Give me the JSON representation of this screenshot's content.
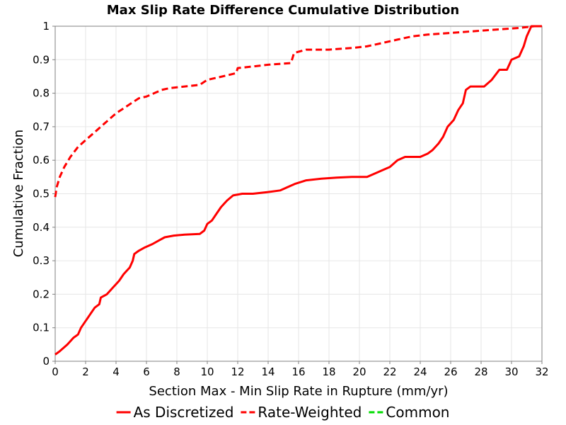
{
  "chart_data": {
    "type": "line",
    "title": "Max Slip Rate Difference Cumulative Distribution",
    "xlabel": "Section Max - Min Slip Rate in Rupture (mm/yr)",
    "ylabel": "Cumulative Fraction",
    "xlim": [
      0,
      32
    ],
    "ylim": [
      0,
      1
    ],
    "x_ticks": [
      "0",
      "2",
      "4",
      "6",
      "8",
      "10",
      "12",
      "14",
      "16",
      "18",
      "20",
      "22",
      "24",
      "26",
      "28",
      "30",
      "32"
    ],
    "y_ticks": [
      "0",
      "0.1",
      "0.2",
      "0.3",
      "0.4",
      "0.5",
      "0.6",
      "0.7",
      "0.8",
      "0.9",
      "1"
    ],
    "grid": true,
    "legend_position": "bottom",
    "series": [
      {
        "name": "As Discretized",
        "color": "#ff0000",
        "dash": "solid",
        "points": [
          [
            0,
            0.02
          ],
          [
            0.3,
            0.03
          ],
          [
            0.8,
            0.05
          ],
          [
            1.2,
            0.07
          ],
          [
            1.5,
            0.08
          ],
          [
            1.7,
            0.1
          ],
          [
            2.0,
            0.12
          ],
          [
            2.3,
            0.14
          ],
          [
            2.6,
            0.16
          ],
          [
            2.9,
            0.17
          ],
          [
            3.0,
            0.19
          ],
          [
            3.4,
            0.2
          ],
          [
            3.8,
            0.22
          ],
          [
            4.2,
            0.24
          ],
          [
            4.5,
            0.26
          ],
          [
            4.9,
            0.28
          ],
          [
            5.1,
            0.3
          ],
          [
            5.2,
            0.32
          ],
          [
            5.5,
            0.33
          ],
          [
            5.9,
            0.34
          ],
          [
            6.4,
            0.35
          ],
          [
            6.8,
            0.36
          ],
          [
            7.2,
            0.37
          ],
          [
            7.8,
            0.375
          ],
          [
            8.5,
            0.378
          ],
          [
            9.5,
            0.38
          ],
          [
            9.8,
            0.39
          ],
          [
            10.0,
            0.41
          ],
          [
            10.3,
            0.42
          ],
          [
            10.6,
            0.44
          ],
          [
            10.9,
            0.46
          ],
          [
            11.3,
            0.48
          ],
          [
            11.7,
            0.495
          ],
          [
            12.3,
            0.5
          ],
          [
            13.0,
            0.5
          ],
          [
            14.0,
            0.505
          ],
          [
            14.8,
            0.51
          ],
          [
            15.3,
            0.52
          ],
          [
            15.8,
            0.53
          ],
          [
            16.5,
            0.54
          ],
          [
            17.5,
            0.545
          ],
          [
            18.5,
            0.548
          ],
          [
            19.5,
            0.55
          ],
          [
            20.0,
            0.55
          ],
          [
            20.5,
            0.55
          ],
          [
            21.0,
            0.56
          ],
          [
            21.5,
            0.57
          ],
          [
            22.0,
            0.58
          ],
          [
            22.5,
            0.6
          ],
          [
            23.0,
            0.61
          ],
          [
            24.0,
            0.61
          ],
          [
            24.5,
            0.62
          ],
          [
            24.8,
            0.63
          ],
          [
            25.2,
            0.65
          ],
          [
            25.5,
            0.67
          ],
          [
            25.8,
            0.7
          ],
          [
            26.2,
            0.72
          ],
          [
            26.5,
            0.75
          ],
          [
            26.8,
            0.77
          ],
          [
            27.0,
            0.81
          ],
          [
            27.3,
            0.82
          ],
          [
            28.2,
            0.82
          ],
          [
            28.7,
            0.84
          ],
          [
            29.2,
            0.87
          ],
          [
            29.7,
            0.87
          ],
          [
            30.0,
            0.9
          ],
          [
            30.5,
            0.91
          ],
          [
            30.8,
            0.94
          ],
          [
            31.0,
            0.97
          ],
          [
            31.3,
            1.0
          ],
          [
            32.0,
            1.0
          ]
        ]
      },
      {
        "name": "Rate-Weighted",
        "color": "#ff0000",
        "dash": "dashed",
        "points": [
          [
            0,
            0.49
          ],
          [
            0.1,
            0.52
          ],
          [
            0.3,
            0.55
          ],
          [
            0.6,
            0.58
          ],
          [
            1.0,
            0.61
          ],
          [
            1.5,
            0.64
          ],
          [
            2.0,
            0.66
          ],
          [
            2.5,
            0.68
          ],
          [
            3.0,
            0.7
          ],
          [
            3.5,
            0.72
          ],
          [
            4.0,
            0.74
          ],
          [
            4.5,
            0.755
          ],
          [
            5.0,
            0.77
          ],
          [
            5.5,
            0.785
          ],
          [
            6.0,
            0.79
          ],
          [
            6.5,
            0.8
          ],
          [
            7.0,
            0.81
          ],
          [
            7.5,
            0.815
          ],
          [
            8.5,
            0.82
          ],
          [
            9.5,
            0.825
          ],
          [
            10.0,
            0.84
          ],
          [
            11.0,
            0.85
          ],
          [
            11.9,
            0.86
          ],
          [
            12.0,
            0.875
          ],
          [
            13.0,
            0.88
          ],
          [
            14.0,
            0.885
          ],
          [
            15.5,
            0.89
          ],
          [
            15.7,
            0.92
          ],
          [
            16.5,
            0.93
          ],
          [
            18.0,
            0.93
          ],
          [
            19.5,
            0.935
          ],
          [
            20.5,
            0.94
          ],
          [
            21.5,
            0.95
          ],
          [
            22.5,
            0.96
          ],
          [
            23.5,
            0.97
          ],
          [
            24.5,
            0.975
          ],
          [
            26.0,
            0.98
          ],
          [
            27.5,
            0.985
          ],
          [
            29.0,
            0.99
          ],
          [
            30.5,
            0.995
          ],
          [
            31.5,
            1.0
          ],
          [
            32.0,
            1.0
          ]
        ]
      },
      {
        "name": "Common",
        "color": "#00dd00",
        "dash": "dashed",
        "points": []
      }
    ]
  }
}
